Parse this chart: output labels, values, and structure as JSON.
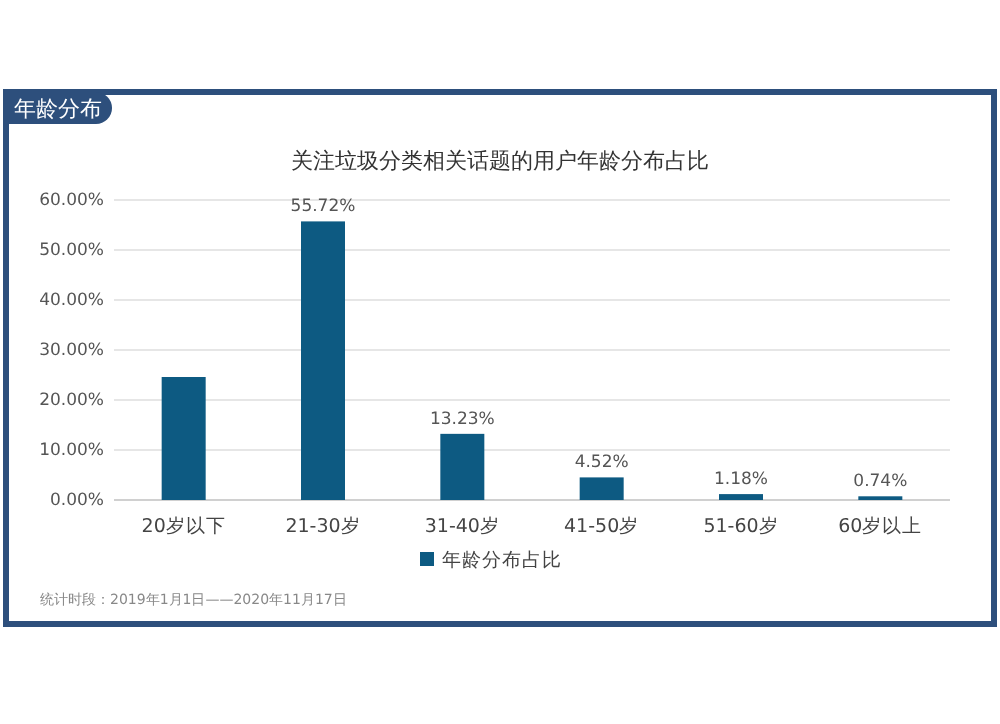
{
  "chart_data": {
    "type": "bar",
    "title": "年龄分布",
    "subtitle": "关注垃圾分类相关话题的用户年龄分布占比",
    "categories": [
      "20岁以下",
      "21-30岁",
      "31-40岁",
      "41-50岁",
      "51-60岁",
      "60岁以上"
    ],
    "series": [
      {
        "name": "年龄分布占比",
        "color": "#0d5a82",
        "values": [
          24.6,
          55.72,
          13.23,
          4.52,
          1.18,
          0.74
        ],
        "value_labels": [
          null,
          "55.72%",
          "13.23%",
          "4.52%",
          "1.18%",
          "0.74%"
        ]
      }
    ],
    "ylim": [
      0,
      60
    ],
    "yticks": [
      {
        "value": 0,
        "label": "0.00%"
      },
      {
        "value": 10,
        "label": "10.00%"
      },
      {
        "value": 20,
        "label": "20.00%"
      },
      {
        "value": 30,
        "label": "30.00%"
      },
      {
        "value": 40,
        "label": "40.00%"
      },
      {
        "value": 50,
        "label": "50.00%"
      },
      {
        "value": 60,
        "label": "60.00%"
      }
    ],
    "grid": "y",
    "legend": "bottom",
    "annotations": [
      "统计时段：2019年1月1日——2020年11月17日"
    ]
  }
}
